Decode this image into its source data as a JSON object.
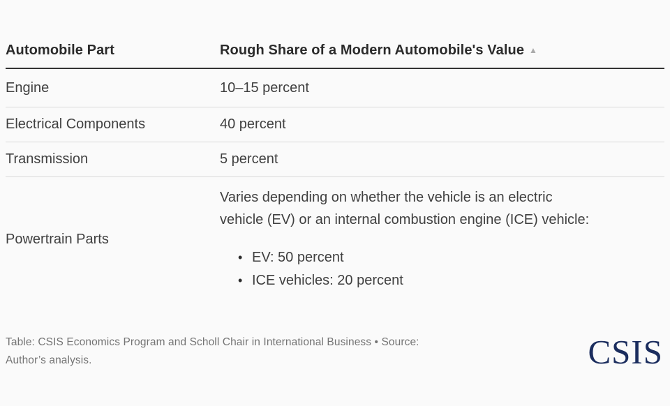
{
  "table": {
    "header": {
      "part_label": "Automobile Part",
      "value_label": "Rough Share of a Modern Automobile's Value",
      "sort_icon": "▲",
      "sort_direction": "ascending"
    },
    "rows": [
      {
        "part": "Engine",
        "value": "10–15 percent"
      },
      {
        "part": "Electrical Components",
        "value": "40 percent"
      },
      {
        "part": "Transmission",
        "value": "5 percent"
      },
      {
        "part": "Powertrain Parts",
        "value_intro_lines": [
          "Varies depending on whether the vehicle is an electric",
          "vehicle (EV) or an internal combustion engine (ICE) vehicle:"
        ],
        "bullet_glyph": "•",
        "value_bullets": [
          "EV: 50 percent",
          "ICE vehicles: 20 percent"
        ]
      }
    ]
  },
  "footer": {
    "credit_lines": [
      "Table: CSIS Economics Program and Scholl Chair in International Business • Source:",
      "Author’s analysis."
    ],
    "logo_text": "CSIS",
    "logo_color": "#1b2d5e"
  },
  "colors": {
    "background": "#fafafa",
    "header_text": "#2b2b2b",
    "body_text": "#404040",
    "header_rule": "#333333",
    "row_divider": "#d9d9d9",
    "credit_text": "#747474",
    "sort_icon": "#ababab",
    "logo_navy": "#1b2d5e"
  },
  "chart_data": {
    "type": "table",
    "title": "",
    "columns": [
      "Automobile Part",
      "Rough Share of a Modern Automobile's Value"
    ],
    "rows": [
      [
        "Engine",
        "10–15 percent"
      ],
      [
        "Electrical Components",
        "40 percent"
      ],
      [
        "Transmission",
        "5 percent"
      ],
      [
        "Powertrain Parts",
        "Varies depending on whether the vehicle is an electric vehicle (EV) or an internal combustion engine (ICE) vehicle: EV: 50 percent; ICE vehicles: 20 percent"
      ]
    ],
    "sort": {
      "column": "Rough Share of a Modern Automobile's Value",
      "direction": "ascending"
    },
    "credit": "Table: CSIS Economics Program and Scholl Chair in International Business",
    "source": "Author’s analysis.",
    "legend_position": "none",
    "grid": "horizontal-row-dividers"
  }
}
